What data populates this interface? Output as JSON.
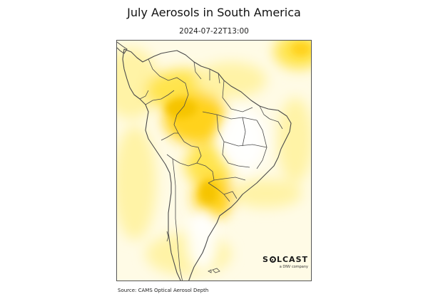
{
  "title": "July Aerosols in South America",
  "timestamp": "2024-07-22T13:00",
  "source": "Source: CAMS Optical Aerosol Depth",
  "logo": {
    "name_start": "S",
    "name_end": "LCAST",
    "tagline": "a DNV company"
  },
  "colors": {
    "background_haze": "#fffbe6",
    "aerosol_light": "#fff3a6",
    "aerosol_medium": "#ffe44d",
    "aerosol_high": "#ffd21a",
    "aerosol_peak": "#f5c400",
    "land": "#ffffff",
    "border": "#4a4a4a"
  }
}
